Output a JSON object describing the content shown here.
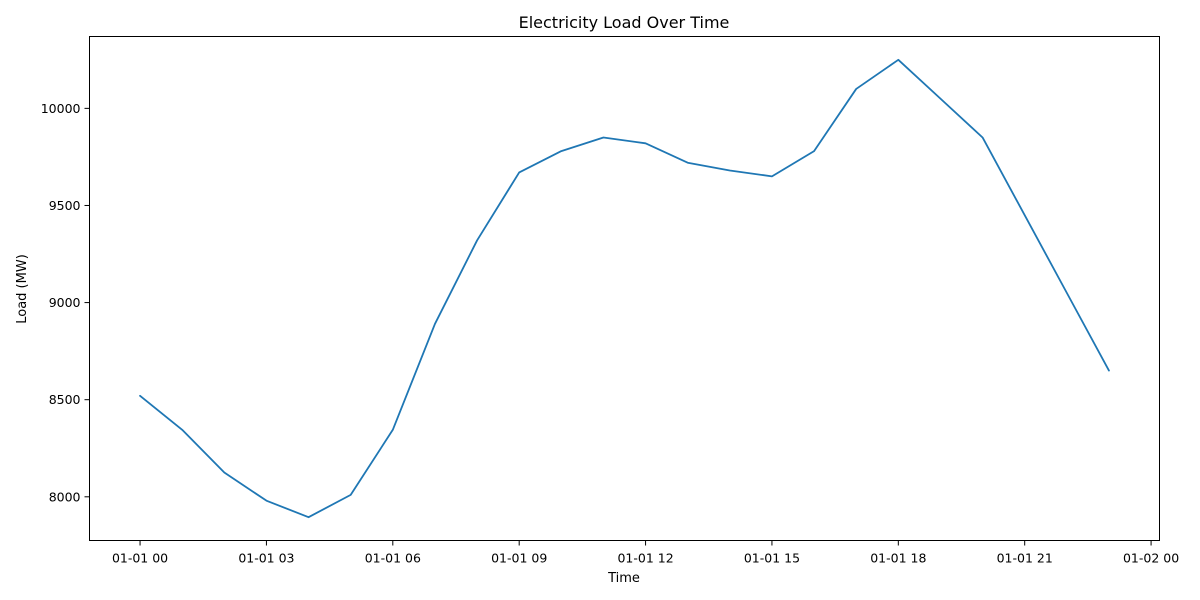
{
  "chart_data": {
    "type": "line",
    "title": "Electricity Load Over Time",
    "xlabel": "Time",
    "ylabel": "Load (MW)",
    "x": [
      "00:00",
      "01:00",
      "02:00",
      "03:00",
      "04:00",
      "05:00",
      "06:00",
      "07:00",
      "08:00",
      "09:00",
      "10:00",
      "11:00",
      "12:00",
      "13:00",
      "14:00",
      "15:00",
      "16:00",
      "17:00",
      "18:00",
      "19:00",
      "20:00",
      "21:00",
      "22:00",
      "23:00"
    ],
    "x_hours": [
      0,
      1,
      2,
      3,
      4,
      5,
      6,
      7,
      8,
      9,
      10,
      11,
      12,
      13,
      14,
      15,
      16,
      17,
      18,
      19,
      20,
      21,
      22,
      23
    ],
    "series": [
      {
        "values": [
          8520,
          8345,
          8125,
          7980,
          7895,
          8010,
          8345,
          8890,
          9320,
          9670,
          9780,
          9850,
          9820,
          9720,
          9680,
          9650,
          9780,
          10100,
          10250,
          10050,
          9850,
          9450,
          9050,
          8650
        ],
        "color": "#1f77b4"
      }
    ],
    "xlim": [
      -1.2,
      24.2
    ],
    "ylim": [
      7775,
      10370
    ],
    "x_ticks": [
      {
        "hour": 0,
        "label": "01-01 00"
      },
      {
        "hour": 3,
        "label": "01-01 03"
      },
      {
        "hour": 6,
        "label": "01-01 06"
      },
      {
        "hour": 9,
        "label": "01-01 09"
      },
      {
        "hour": 12,
        "label": "01-01 12"
      },
      {
        "hour": 15,
        "label": "01-01 15"
      },
      {
        "hour": 18,
        "label": "01-01 18"
      },
      {
        "hour": 21,
        "label": "01-01 21"
      },
      {
        "hour": 24,
        "label": "01-02 00"
      }
    ],
    "y_ticks": [
      {
        "value": 8000,
        "label": "8000"
      },
      {
        "value": 8500,
        "label": "8500"
      },
      {
        "value": 9000,
        "label": "9000"
      },
      {
        "value": 9500,
        "label": "9500"
      },
      {
        "value": 10000,
        "label": "10000"
      }
    ],
    "grid": false,
    "legend": "none"
  }
}
